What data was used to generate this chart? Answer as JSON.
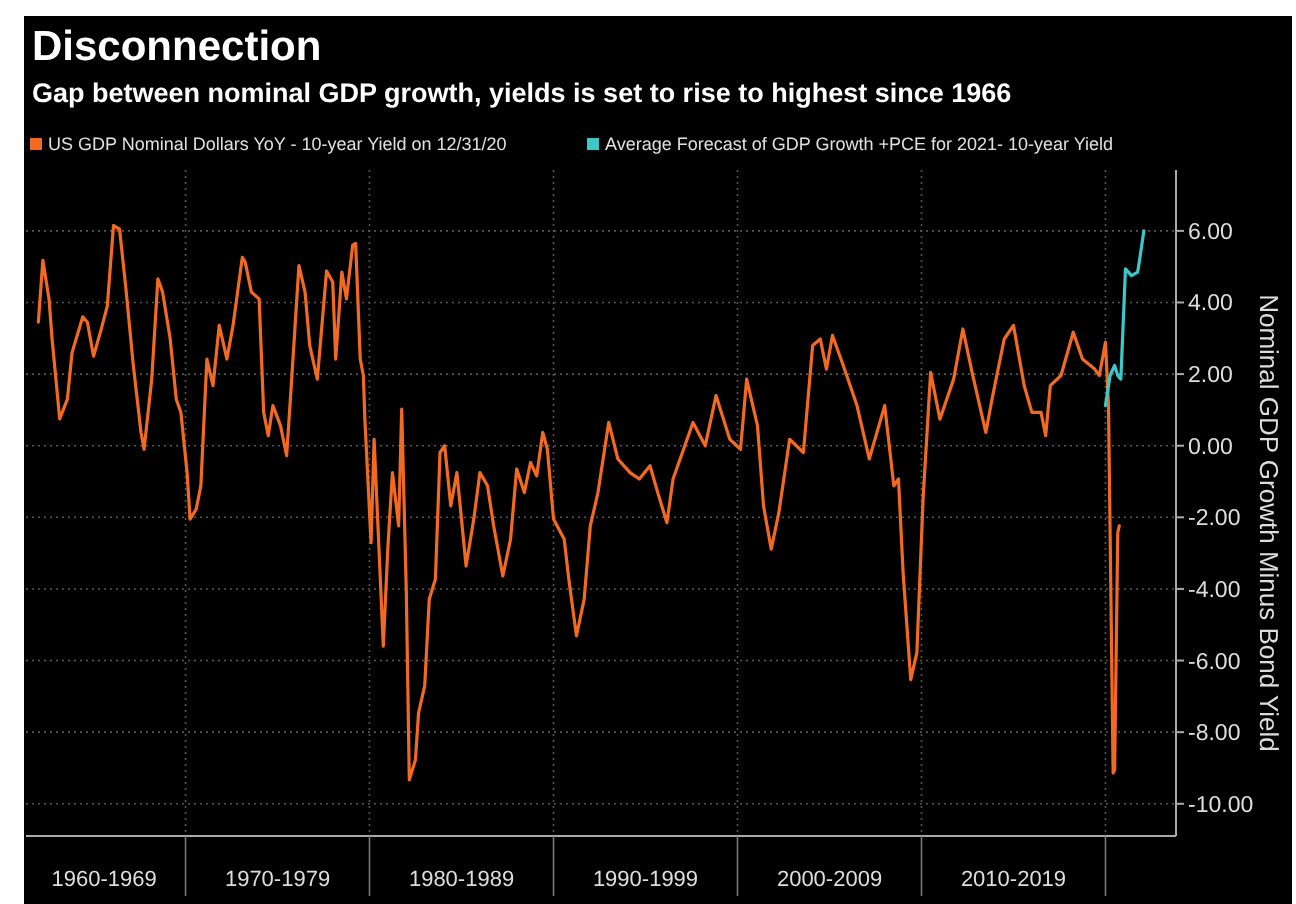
{
  "chart_data": {
    "type": "line",
    "title": "Disconnection",
    "subtitle": "Gap between nominal GDP growth, yields is set to rise to highest since 1966",
    "ylabel": "Nominal GDP Growth Minus Bond Yield",
    "xlim": [
      "1961-05",
      "2023-11"
    ],
    "ylim": [
      -10.9,
      7.7
    ],
    "xticks": [
      {
        "value": "1965-08",
        "label": "1960-1969"
      },
      {
        "value": "1970",
        "label": null
      },
      {
        "value": "1975",
        "label": "1970-1979"
      },
      {
        "value": "1980",
        "label": null
      },
      {
        "value": "1985",
        "label": "1980-1989"
      },
      {
        "value": "1990",
        "label": null
      },
      {
        "value": "1995",
        "label": "1990-1999"
      },
      {
        "value": "2000",
        "label": null
      },
      {
        "value": "2005",
        "label": "2000-2009"
      },
      {
        "value": "2010",
        "label": null
      },
      {
        "value": "2015",
        "label": "2010-2019"
      },
      {
        "value": "2020",
        "label": null
      }
    ],
    "yticks": [
      {
        "value": 6,
        "label": "6.00"
      },
      {
        "value": 4,
        "label": "4.00"
      },
      {
        "value": 2,
        "label": "2.00"
      },
      {
        "value": 0,
        "label": "0.00"
      },
      {
        "value": -2,
        "label": "-2.00"
      },
      {
        "value": -4,
        "label": "-4.00"
      },
      {
        "value": -6,
        "label": "-6.00"
      },
      {
        "value": -8,
        "label": "-8.00"
      },
      {
        "value": -10,
        "label": "-10.00"
      }
    ],
    "grid": true,
    "legend": "top left",
    "series": [
      {
        "name": "US GDP Nominal Dollars YoY - 10-year Yield on 12/31/20",
        "color": "#f26a21",
        "x": [
          "1962-01",
          "1962-04",
          "1962-08",
          "1962-10",
          "1963-03",
          "1963-08",
          "1963-11",
          "1964-06",
          "1964-09",
          "1965-01",
          "1965-06",
          "1965-10",
          "1966-02",
          "1966-06",
          "1966-10",
          "1967-03",
          "1967-08",
          "1967-10",
          "1968-03",
          "1968-07",
          "1968-10",
          "1969-03",
          "1969-07",
          "1969-10",
          "1970-02",
          "1970-04",
          "1970-08",
          "1970-11",
          "1971-03",
          "1971-07",
          "1971-11",
          "1972-04",
          "1972-08",
          "1973-02",
          "1973-04",
          "1973-08",
          "1974-01",
          "1974-04",
          "1974-07",
          "1974-10",
          "1975-03",
          "1975-07",
          "1975-10",
          "1976-03",
          "1976-07",
          "1976-10",
          "1977-03",
          "1977-09",
          "1978-01",
          "1978-03",
          "1978-07",
          "1978-10",
          "1979-02",
          "1979-04",
          "1979-07",
          "1979-09",
          "1979-10",
          "1980-02",
          "1980-04",
          "1980-10",
          "1981-01",
          "1981-04",
          "1981-08",
          "1981-10",
          "1982-01",
          "1982-03",
          "1982-07",
          "1982-09",
          "1983-01",
          "1983-04",
          "1983-08",
          "1983-11",
          "1984-02",
          "1984-06",
          "1984-10",
          "1985-04",
          "1985-09",
          "1986-01",
          "1986-06",
          "1986-10",
          "1987-04",
          "1987-09",
          "1988-01",
          "1988-06",
          "1988-10",
          "1989-02",
          "1989-06",
          "1989-09",
          "1990-01",
          "1990-08",
          "1990-11",
          "1991-04",
          "1991-09",
          "1992-01",
          "1992-06",
          "1993-01",
          "1993-07",
          "1994-03",
          "1994-09",
          "1995-04",
          "1995-09",
          "1996-03",
          "1996-07",
          "1997-08",
          "1998-04",
          "1998-11",
          "1999-08",
          "2000-03",
          "2000-07",
          "2001-02",
          "2001-06",
          "2001-11",
          "2002-04",
          "2002-11",
          "2003-08",
          "2004-02",
          "2004-07",
          "2004-11",
          "2005-03",
          "2005-10",
          "2006-07",
          "2007-03",
          "2008-01",
          "2008-07",
          "2008-10",
          "2009-01",
          "2009-06",
          "2009-10",
          "2010-02",
          "2010-07",
          "2011-01",
          "2011-10",
          "2012-04",
          "2012-10",
          "2013-07",
          "2013-11",
          "2014-07",
          "2015-01",
          "2015-08",
          "2016-01",
          "2016-07",
          "2016-10",
          "2017-01",
          "2017-08",
          "2018-04",
          "2018-10",
          "2019-06",
          "2019-09",
          "2020-01",
          "2020-03",
          "2020-06",
          "2020-07",
          "2020-09",
          "2020-10"
        ],
        "values": [
          3.45,
          5.18,
          4.1,
          2.98,
          0.75,
          1.3,
          2.6,
          3.6,
          3.45,
          2.5,
          3.25,
          3.9,
          6.15,
          6.05,
          4.45,
          2.25,
          0.37,
          -0.1,
          1.86,
          4.66,
          4.3,
          3.0,
          1.3,
          0.93,
          -0.75,
          -2.05,
          -1.77,
          -1.12,
          2.42,
          1.68,
          3.36,
          2.42,
          3.36,
          5.26,
          5.12,
          4.29,
          4.1,
          0.93,
          0.28,
          1.12,
          0.56,
          -0.28,
          1.68,
          5.03,
          4.29,
          2.8,
          1.86,
          4.88,
          4.57,
          2.42,
          4.85,
          4.1,
          5.6,
          5.65,
          2.42,
          1.96,
          0.74,
          -2.71,
          0.18,
          -5.6,
          -2.8,
          -0.75,
          -2.24,
          1.02,
          -4.1,
          -9.33,
          -8.77,
          -7.46,
          -6.71,
          -4.29,
          -3.73,
          -0.19,
          0.0,
          -1.68,
          -0.75,
          -3.36,
          -2.05,
          -0.75,
          -1.12,
          -2.24,
          -3.64,
          -2.61,
          -0.65,
          -1.31,
          -0.47,
          -0.84,
          0.37,
          -0.1,
          -2.05,
          -2.61,
          -3.73,
          -5.31,
          -4.29,
          -2.24,
          -1.31,
          0.65,
          -0.37,
          -0.75,
          -0.93,
          -0.56,
          -1.31,
          -2.15,
          -0.93,
          0.65,
          0.0,
          1.4,
          0.18,
          -0.1,
          1.86,
          0.56,
          -1.68,
          -2.89,
          -1.87,
          0.18,
          -0.19,
          2.8,
          2.98,
          2.14,
          3.08,
          2.24,
          1.12,
          -0.37,
          1.12,
          -1.12,
          -0.93,
          -3.55,
          -6.53,
          -5.78,
          -1.49,
          2.05,
          0.74,
          1.86,
          3.26,
          2.05,
          0.37,
          1.3,
          2.98,
          3.36,
          1.68,
          0.93,
          0.93,
          0.28,
          1.68,
          1.96,
          3.17,
          2.42,
          2.14,
          1.96,
          2.89,
          1.12,
          -9.14,
          -9.05,
          -2.43,
          -2.24
        ]
      },
      {
        "name": "Average Forecast of GDP Growth +PCE for 2021- 10-year Yield",
        "color": "#3cc8c8",
        "x": [
          "2020-01",
          "2020-04",
          "2020-07",
          "2020-09",
          "2020-11",
          "2021-02",
          "2021-06",
          "2021-10",
          "2021-11",
          "2022-02"
        ],
        "values": [
          1.12,
          1.96,
          2.24,
          1.96,
          1.86,
          4.94,
          4.75,
          4.85,
          5.12,
          6.0
        ]
      }
    ]
  }
}
